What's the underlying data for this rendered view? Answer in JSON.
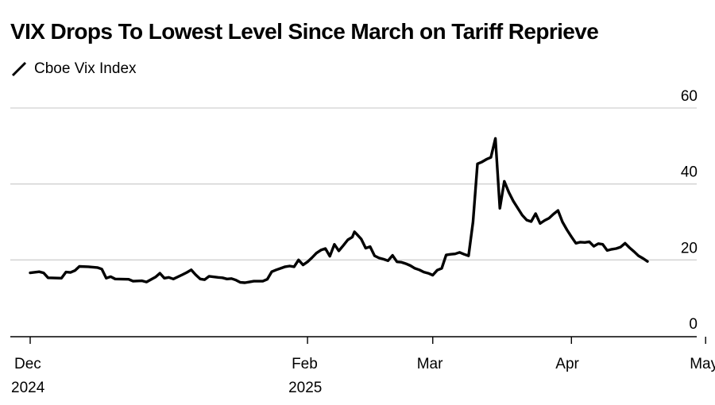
{
  "chart_data": {
    "type": "line",
    "title": "VIX Drops To Lowest Level Since March on Tariff Reprieve",
    "legend": [
      {
        "label": "Cboe Vix Index",
        "color": "#000000"
      }
    ],
    "legend_position": "top-left",
    "xlabel": "",
    "ylabel": "",
    "ylim": [
      0,
      60
    ],
    "yticks": [
      "0",
      "20",
      "40",
      "60"
    ],
    "ytick_values": [
      0,
      20,
      40,
      60
    ],
    "x_start": -2,
    "x_end": 162,
    "xticks": [
      {
        "label": "Dec",
        "sublabel": "2024",
        "x": 0
      },
      {
        "label": "Feb",
        "sublabel": "2025",
        "x": 62
      },
      {
        "label": "Mar",
        "sublabel": "",
        "x": 90
      },
      {
        "label": "Apr",
        "sublabel": "",
        "x": 121
      },
      {
        "label": "May",
        "sublabel": "",
        "x": 151
      }
    ],
    "grid": true,
    "series": [
      {
        "name": "Cboe Vix Index",
        "color": "#000000",
        "points": [
          [
            0,
            16.6
          ],
          [
            2,
            16.9
          ],
          [
            3,
            16.6
          ],
          [
            4,
            15.3
          ],
          [
            7,
            15.2
          ],
          [
            8,
            16.8
          ],
          [
            9,
            16.7
          ],
          [
            10,
            17.2
          ],
          [
            11,
            18.3
          ],
          [
            13,
            18.2
          ],
          [
            15,
            18.0
          ],
          [
            16,
            17.6
          ],
          [
            17,
            15.2
          ],
          [
            18,
            15.6
          ],
          [
            19,
            15.0
          ],
          [
            22,
            14.9
          ],
          [
            23,
            14.4
          ],
          [
            25,
            14.5
          ],
          [
            26,
            14.2
          ],
          [
            28,
            15.5
          ],
          [
            29,
            16.5
          ],
          [
            30,
            15.2
          ],
          [
            31,
            15.4
          ],
          [
            32,
            15.0
          ],
          [
            34,
            16.1
          ],
          [
            35,
            16.7
          ],
          [
            36,
            17.4
          ],
          [
            37,
            16.1
          ],
          [
            38,
            15.0
          ],
          [
            39,
            14.8
          ],
          [
            40,
            15.7
          ],
          [
            42,
            15.4
          ],
          [
            43,
            15.3
          ],
          [
            44,
            15.0
          ],
          [
            45,
            15.1
          ],
          [
            46,
            14.7
          ],
          [
            47,
            14.1
          ],
          [
            48,
            14.0
          ],
          [
            49,
            14.2
          ],
          [
            50,
            14.4
          ],
          [
            51,
            14.4
          ],
          [
            52,
            14.4
          ],
          [
            53,
            14.9
          ],
          [
            54,
            16.9
          ],
          [
            55,
            17.4
          ],
          [
            56,
            17.8
          ],
          [
            57,
            18.2
          ],
          [
            58,
            18.4
          ],
          [
            59,
            18.2
          ],
          [
            60,
            20.0
          ],
          [
            61,
            18.7
          ],
          [
            62,
            19.5
          ],
          [
            63,
            20.6
          ],
          [
            64,
            21.8
          ],
          [
            65,
            22.6
          ],
          [
            66,
            23.0
          ],
          [
            67,
            21.0
          ],
          [
            68,
            24.1
          ],
          [
            69,
            22.4
          ],
          [
            70,
            23.8
          ],
          [
            71,
            25.3
          ],
          [
            72,
            26.0
          ],
          [
            72.5,
            27.4
          ],
          [
            73,
            26.8
          ],
          [
            74,
            25.5
          ],
          [
            75,
            23.1
          ],
          [
            76,
            23.5
          ],
          [
            77,
            21.1
          ],
          [
            78,
            20.5
          ],
          [
            79,
            20.2
          ],
          [
            80,
            19.8
          ],
          [
            81,
            21.2
          ],
          [
            82,
            19.5
          ],
          [
            83,
            19.4
          ],
          [
            84,
            19.0
          ],
          [
            85,
            18.5
          ],
          [
            86,
            17.8
          ],
          [
            87,
            17.4
          ],
          [
            88,
            16.8
          ],
          [
            89,
            16.5
          ],
          [
            90,
            16.0
          ],
          [
            91,
            17.3
          ],
          [
            92,
            17.8
          ],
          [
            93,
            21.3
          ],
          [
            94,
            21.5
          ],
          [
            95,
            21.6
          ],
          [
            96,
            22.0
          ],
          [
            97,
            21.5
          ],
          [
            98,
            21.1
          ],
          [
            99,
            30.0
          ],
          [
            100,
            45.3
          ],
          [
            101,
            45.8
          ],
          [
            102,
            46.5
          ],
          [
            103,
            47.0
          ],
          [
            104,
            52.0
          ],
          [
            105,
            33.6
          ],
          [
            106,
            40.7
          ],
          [
            107,
            37.8
          ],
          [
            108,
            35.5
          ],
          [
            110,
            31.8
          ],
          [
            111,
            30.5
          ],
          [
            112,
            30.1
          ],
          [
            113,
            32.2
          ],
          [
            114,
            29.6
          ],
          [
            115,
            30.4
          ],
          [
            116,
            31.0
          ],
          [
            117,
            32.1
          ],
          [
            118,
            33.0
          ],
          [
            119,
            30.0
          ],
          [
            120,
            27.9
          ],
          [
            121,
            26.1
          ],
          [
            122,
            24.4
          ],
          [
            123,
            24.7
          ],
          [
            124,
            24.6
          ],
          [
            125,
            24.8
          ],
          [
            126,
            23.6
          ],
          [
            127,
            24.3
          ],
          [
            128,
            24.1
          ],
          [
            129,
            22.5
          ],
          [
            130,
            22.8
          ],
          [
            131,
            23.0
          ],
          [
            132,
            23.4
          ],
          [
            133,
            24.4
          ],
          [
            134,
            23.2
          ],
          [
            135,
            22.2
          ],
          [
            136,
            21.1
          ],
          [
            137,
            20.4
          ],
          [
            138,
            19.6
          ]
        ]
      }
    ]
  }
}
